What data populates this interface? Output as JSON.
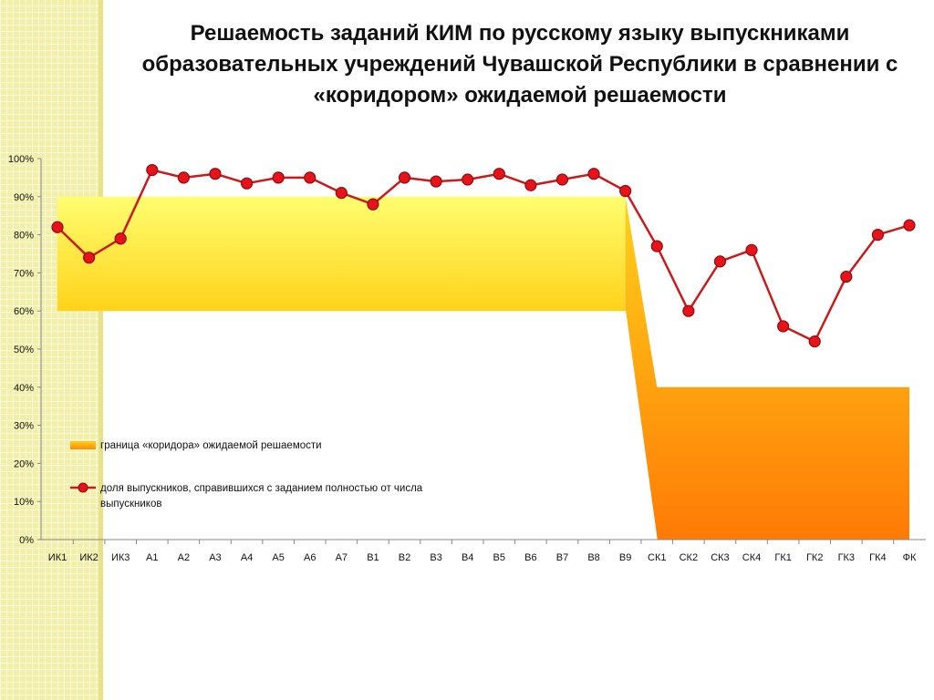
{
  "title": "Решаемость заданий КИМ по русскому языку выпускниками образовательных учреждений Чувашской Республики  в сравнении с «коридором» ожидаемой решаемости",
  "chart_data": {
    "type": "line",
    "categories": [
      "ИК1",
      "ИК2",
      "ИК3",
      "А1",
      "А2",
      "А3",
      "А4",
      "А5",
      "А6",
      "А7",
      "В1",
      "В2",
      "В3",
      "В4",
      "В5",
      "В6",
      "В7",
      "В8",
      "В9",
      "СК1",
      "СК2",
      "СК3",
      "СК4",
      "ГК1",
      "ГК2",
      "ГК3",
      "ГК4",
      "ФК"
    ],
    "series": [
      {
        "name": "доля выпускников, справившихся с заданием полностью от  числа выпускников",
        "values": [
          82,
          74,
          79,
          97,
          95,
          96,
          93.5,
          95,
          95,
          91,
          88,
          95,
          94,
          94.5,
          96,
          93,
          94.5,
          96,
          91.5,
          77,
          60,
          73,
          76,
          56,
          52,
          69,
          80,
          82.5
        ],
        "color": "#cc1a1a",
        "marker_color": "#e8121a"
      }
    ],
    "corridor": {
      "name": "граница «коридора» ожидаемой решаемости",
      "lower": [
        60,
        60,
        60,
        60,
        60,
        60,
        60,
        60,
        60,
        60,
        60,
        60,
        60,
        60,
        60,
        60,
        60,
        60,
        60,
        0,
        0,
        0,
        0,
        0,
        0,
        0,
        0,
        0
      ],
      "upper": [
        90,
        90,
        90,
        90,
        90,
        90,
        90,
        90,
        90,
        90,
        90,
        90,
        90,
        90,
        90,
        90,
        90,
        90,
        90,
        40,
        40,
        40,
        40,
        40,
        40,
        40,
        40,
        40
      ],
      "colors": {
        "light": "#fffe70",
        "mid": "#ffd21a",
        "dark": "#ff7a06"
      }
    },
    "yticks": [
      "0%",
      "10%",
      "20%",
      "30%",
      "40%",
      "50%",
      "60%",
      "70%",
      "80%",
      "90%",
      "100%"
    ],
    "ylim": [
      0,
      100
    ],
    "grid": false,
    "legend_position": "inside-lower-left"
  }
}
